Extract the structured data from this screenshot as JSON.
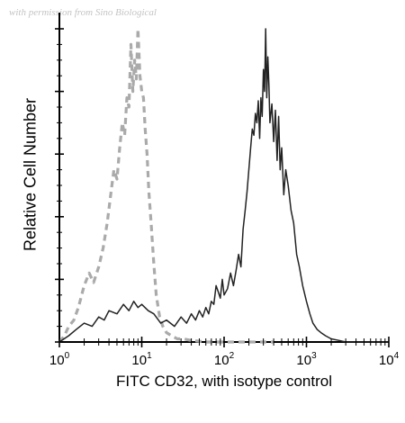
{
  "watermark": "with permission from Sino Biological",
  "chart_data": {
    "type": "line",
    "title": "",
    "xlabel": "FITC CD32, with isotype control",
    "ylabel": "Relative Cell Number",
    "xscale": "log",
    "xlim": [
      1,
      10000
    ],
    "ylim": [
      0,
      100
    ],
    "x_tick_base": "10",
    "x_ticks": [
      {
        "value": 1,
        "exponent": "0"
      },
      {
        "value": 10,
        "exponent": "1"
      },
      {
        "value": 100,
        "exponent": "2"
      },
      {
        "value": 1000,
        "exponent": "3"
      },
      {
        "value": 10000,
        "exponent": "4"
      }
    ],
    "y_ticks": [
      0,
      20,
      40,
      60,
      80,
      100
    ],
    "grid": false,
    "legend": "none",
    "series": [
      {
        "style": "dashed",
        "color": "#aaaaaa",
        "x": [
          1.0,
          1.15,
          1.3,
          1.5,
          1.7,
          2.0,
          2.3,
          2.6,
          3.0,
          3.4,
          3.8,
          4.2,
          4.6,
          5.0,
          5.4,
          5.8,
          6.2,
          6.6,
          7.0,
          7.4,
          7.8,
          8.2,
          8.6,
          9.0,
          9.5,
          10.0,
          10.5,
          11.0,
          11.6,
          12.2,
          13.0,
          14.0,
          15.0,
          16.5,
          18.0,
          20.0,
          23.0,
          27.0,
          32.0,
          40.0,
          60.0,
          100.0,
          200.0,
          400.0
        ],
        "y": [
          0,
          2,
          5,
          7,
          11,
          18,
          22,
          19,
          24,
          30,
          38,
          47,
          55,
          52,
          62,
          70,
          66,
          78,
          75,
          95,
          80,
          90,
          84,
          100,
          85,
          80,
          78,
          68,
          60,
          48,
          38,
          25,
          15,
          8,
          5,
          3,
          2,
          1,
          1,
          0.5,
          0,
          0,
          0,
          0
        ]
      },
      {
        "style": "solid",
        "color": "#222222",
        "x": [
          1.0,
          1.3,
          1.6,
          2.0,
          2.5,
          3.0,
          3.5,
          4.0,
          5.0,
          6.0,
          7.0,
          8.0,
          9.0,
          10.0,
          12.0,
          14.0,
          17.0,
          20.0,
          25.0,
          30.0,
          35.0,
          40.0,
          45.0,
          50.0,
          55.0,
          60.0,
          65.0,
          70.0,
          75.0,
          80.0,
          85.0,
          90.0,
          95.0,
          100.0,
          110.0,
          120.0,
          130.0,
          140.0,
          150.0,
          160.0,
          170.0,
          180.0,
          190.0,
          200.0,
          210.0,
          220.0,
          230.0,
          240.0,
          250.0,
          260.0,
          270.0,
          280.0,
          290.0,
          300.0,
          310.0,
          320.0,
          330.0,
          340.0,
          350.0,
          360.0,
          380.0,
          400.0,
          420.0,
          440.0,
          460.0,
          480.0,
          500.0,
          530.0,
          560.0,
          600.0,
          650.0,
          700.0,
          760.0,
          820.0,
          900.0,
          1000.0,
          1100.0,
          1200.0,
          1350.0,
          1500.0,
          1700.0,
          2000.0,
          2500.0,
          3000.0,
          5000.0,
          10000.0
        ],
        "y": [
          0,
          2,
          4,
          6,
          5,
          8,
          7,
          10,
          9,
          12,
          10,
          13,
          11,
          12,
          10,
          9,
          6,
          7,
          5,
          8,
          6,
          9,
          7,
          10,
          8,
          11,
          9,
          13,
          12,
          18,
          16,
          14,
          20,
          15,
          17,
          22,
          18,
          23,
          28,
          24,
          36,
          42,
          48,
          55,
          62,
          68,
          66,
          73,
          70,
          77,
          65,
          78,
          72,
          87,
          80,
          100,
          78,
          91,
          82,
          70,
          76,
          64,
          74,
          58,
          72,
          55,
          62,
          47,
          55,
          50,
          42,
          38,
          28,
          24,
          18,
          13,
          9,
          6,
          4,
          3,
          2,
          1,
          0.5,
          0,
          0,
          0
        ]
      }
    ]
  }
}
